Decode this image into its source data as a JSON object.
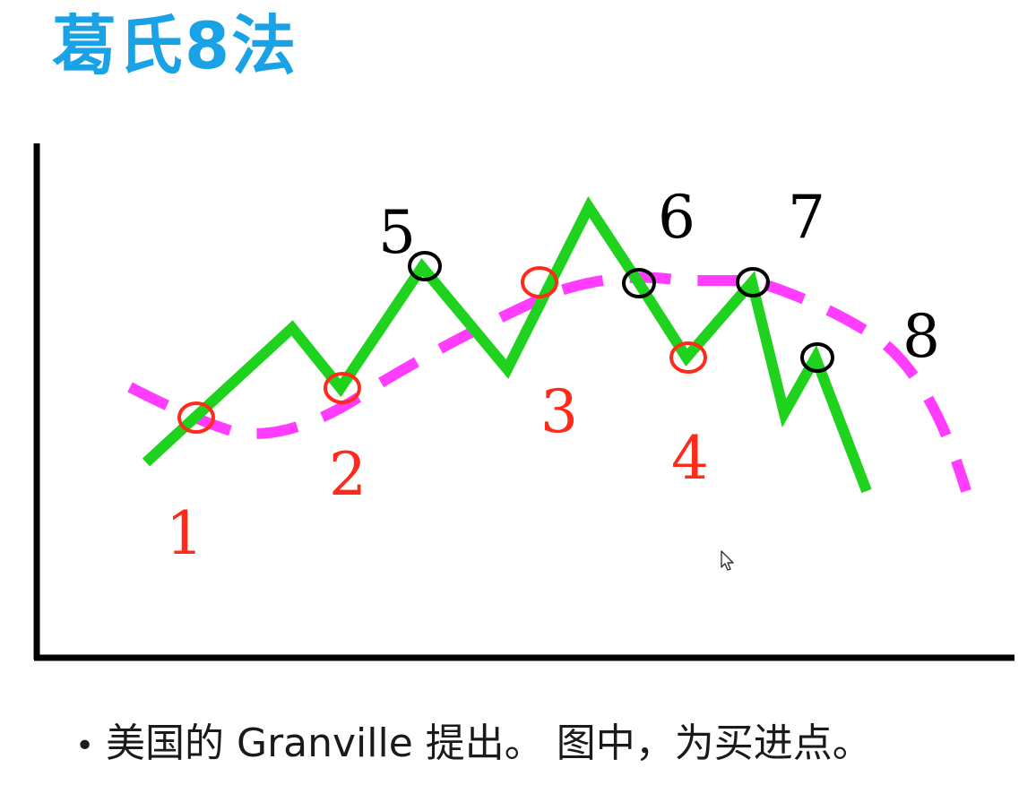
{
  "title": "葛氏8法",
  "colors": {
    "title": "#1aa2e6",
    "price_line": "#1ed21e",
    "moving_average": "#ff3cff",
    "buy_point": "#ff2a1a",
    "sell_point": "#000000",
    "axis": "#000000"
  },
  "diagram": {
    "buy_points": [
      {
        "label": "1"
      },
      {
        "label": "2"
      },
      {
        "label": "3"
      },
      {
        "label": "4"
      }
    ],
    "sell_points": [
      {
        "label": "5"
      },
      {
        "label": "6"
      },
      {
        "label": "7"
      },
      {
        "label": "8"
      }
    ]
  },
  "caption": {
    "bullet": "•",
    "text": "美国的 Granville 提出。 图中，为买进点。"
  },
  "cursor_icon": "mouse-pointer-icon"
}
